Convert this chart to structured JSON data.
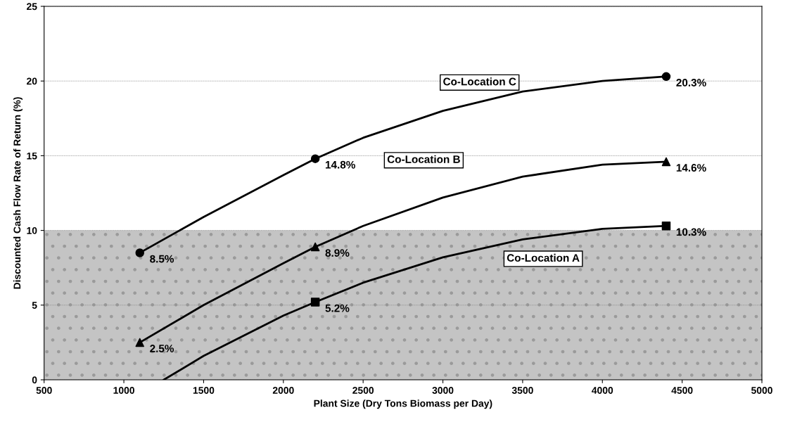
{
  "chart_data": {
    "type": "line",
    "xlabel": "Plant Size (Dry Tons Biomass per Day)",
    "ylabel": "Discounted Cash Flow Rate of Return (%)",
    "xlim": [
      500,
      5000
    ],
    "xticks": [
      500,
      1000,
      1500,
      2000,
      2500,
      3000,
      3500,
      4000,
      4500,
      5000
    ],
    "ylim": [
      0,
      25
    ],
    "yticks": [
      0,
      5,
      10,
      15,
      20,
      25
    ],
    "grid": "y",
    "legend": false,
    "line_style": "solid",
    "bands": [
      {
        "axis": "y",
        "from": 0,
        "to": 10,
        "color": "#c4c4c4"
      }
    ],
    "series": [
      {
        "color": "#000000",
        "marker": "none",
        "x": [
          1100,
          1500,
          2000,
          2200,
          2500,
          3000,
          3500,
          4000,
          4400
        ],
        "values": [
          8.5,
          10.9,
          13.7,
          14.8,
          16.2,
          18.0,
          19.3,
          20.0,
          20.3
        ]
      },
      {
        "color": "#000000",
        "marker": "none",
        "x": [
          1100,
          1500,
          2000,
          2200,
          2500,
          3000,
          3500,
          4000,
          4400
        ],
        "values": [
          2.5,
          5.0,
          7.8,
          8.9,
          10.3,
          12.2,
          13.6,
          14.4,
          14.6
        ]
      },
      {
        "color": "#000000",
        "marker": "none",
        "x": [
          1250,
          1500,
          2000,
          2200,
          2500,
          3000,
          3500,
          4000,
          4400
        ],
        "values": [
          0,
          1.6,
          4.3,
          5.2,
          6.5,
          8.2,
          9.4,
          10.1,
          10.3
        ]
      },
      {
        "name": "Co-Location C",
        "type": "scatter",
        "color": "#000000",
        "marker": "circle",
        "x": [
          1100,
          2200,
          4400
        ],
        "values": [
          8.5,
          14.8,
          20.3
        ],
        "value_labels": [
          "8.5%",
          "14.8%",
          "20.3%"
        ]
      },
      {
        "name": "Co-Location B",
        "type": "scatter",
        "color": "#000000",
        "marker": "triangle",
        "x": [
          1100,
          2200,
          4400
        ],
        "values": [
          2.5,
          8.9,
          14.6
        ],
        "value_labels": [
          "2.5%",
          "8.9%",
          "14.6%"
        ]
      },
      {
        "name": "Co-Location A",
        "type": "scatter",
        "color": "#000000",
        "marker": "square",
        "x": [
          2200,
          4400
        ],
        "values": [
          5.2,
          10.3
        ],
        "value_labels": [
          "5.2%",
          "10.3%"
        ]
      }
    ]
  }
}
